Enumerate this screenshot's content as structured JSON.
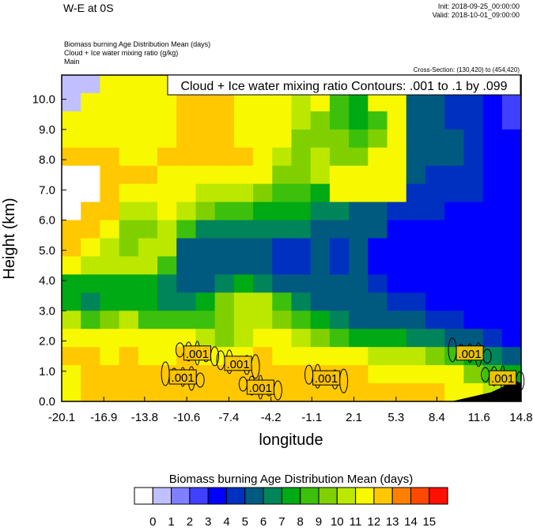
{
  "header": {
    "title": "W-E at 0S",
    "init": "Init: 2018-09-25_00:00:00",
    "valid": "Valid: 2018-10-01_09:00:00",
    "field1": "Biomass burning Age Distribution Mean   (days)",
    "field2": "Cloud + Ice water mixing ratio   (g/kg)",
    "field3": "Main",
    "cross_section": "Cross-Section: (130,420) to (454,420)"
  },
  "chart_data": {
    "type": "heatmap",
    "title": "",
    "contour_legend": "Cloud + Ice water mixing ratio Contours: .001 to .1 by .099",
    "xlabel": "longitude",
    "ylabel": "Height (km)",
    "xlim": [
      -20.1,
      14.8
    ],
    "ylim": [
      0,
      10.8
    ],
    "x_tick_labels": [
      "-20.1",
      "-16.9",
      "-13.8",
      "-10.6",
      "-7.4",
      "-4.2",
      "-1.1",
      "2.1",
      "5.3",
      "8.4",
      "11.6",
      "14.8"
    ],
    "y_tick_labels": [
      "0.0",
      "1.0",
      "2.0",
      "3.0",
      "4.0",
      "5.0",
      "6.0",
      "7.0",
      "8.0",
      "9.0",
      "10.0"
    ],
    "grid": false,
    "field_rows_top_to_bottom": [
      [
        0.5,
        0.5,
        11.5,
        11.5,
        11.5,
        11.5,
        12.5,
        12.5,
        12.5,
        11.5,
        11.5,
        11.5,
        11.5,
        11.5,
        11.5,
        11.5,
        11.5,
        11.5,
        5.5,
        5.5,
        4.5,
        4.5,
        3.5,
        2.5
      ],
      [
        0.5,
        11.5,
        11.5,
        11.5,
        11.5,
        11.5,
        12.5,
        12.5,
        12.5,
        11.5,
        11.5,
        11.5,
        10.5,
        11.5,
        8.5,
        7.5,
        11.5,
        11.5,
        5.5,
        5.5,
        4.5,
        4.5,
        3.5,
        2.5
      ],
      [
        11.5,
        11.5,
        11.5,
        11.5,
        11.5,
        11.5,
        12.5,
        12.5,
        12.5,
        11.5,
        11.5,
        11.5,
        10.5,
        9.5,
        8.5,
        7.5,
        8.5,
        11.5,
        5.5,
        5.5,
        4.5,
        4.5,
        3.5,
        2.5
      ],
      [
        11.5,
        11.5,
        11.5,
        11.5,
        11.5,
        11.5,
        12.5,
        12.5,
        12.5,
        11.5,
        11.5,
        11.5,
        9.5,
        9.5,
        9.5,
        8.5,
        9.5,
        11.5,
        5.5,
        5.5,
        5.5,
        4.5,
        3.5,
        3.5
      ],
      [
        12.5,
        12.5,
        12.5,
        11.5,
        11.5,
        12.5,
        12.5,
        12.5,
        12.5,
        12.5,
        11.5,
        10.5,
        9.5,
        10.5,
        9.5,
        9.5,
        11.5,
        11.5,
        5.5,
        5.5,
        5.5,
        4.5,
        3.5,
        3.5
      ],
      [
        -0.5,
        -0.5,
        12.5,
        12.5,
        12.5,
        11.5,
        11.5,
        11.5,
        11.5,
        11.5,
        11.5,
        9.5,
        9.5,
        10.5,
        11.5,
        11.5,
        11.5,
        11.5,
        5.5,
        4.5,
        4.5,
        4.5,
        3.5,
        3.5
      ],
      [
        -0.5,
        -0.5,
        12.5,
        11.5,
        11.5,
        11.5,
        11.5,
        10.5,
        10.5,
        10.5,
        9.5,
        8.5,
        8.5,
        7.5,
        11.5,
        11.5,
        11.5,
        11.5,
        4.5,
        4.5,
        4.5,
        4.5,
        3.5,
        3.5
      ],
      [
        -0.5,
        12.5,
        12.5,
        10.5,
        10.5,
        11.5,
        10.5,
        9.5,
        8.5,
        8.5,
        7.5,
        7.5,
        7.5,
        6.5,
        6.5,
        5.5,
        5.5,
        4.5,
        4.5,
        4.5,
        3.5,
        3.5,
        3.5,
        3.5
      ],
      [
        12.5,
        12.5,
        11.5,
        9.5,
        9.5,
        10.5,
        8.5,
        6.5,
        6.5,
        6.5,
        6.5,
        6.5,
        6.5,
        5.5,
        5.5,
        5.5,
        5.5,
        3.5,
        3.5,
        3.5,
        3.5,
        3.5,
        3.5,
        3.5
      ],
      [
        12.5,
        11.5,
        10.5,
        9.5,
        10.5,
        10.5,
        5.5,
        5.5,
        5.5,
        5.5,
        5.5,
        4.5,
        4.5,
        5.5,
        4.5,
        5.5,
        3.5,
        3.5,
        3.5,
        3.5,
        3.5,
        3.5,
        3.5,
        3.5
      ],
      [
        11.5,
        10.5,
        10.5,
        10.5,
        10.5,
        8.5,
        5.5,
        5.5,
        5.5,
        5.5,
        5.5,
        4.5,
        4.5,
        5.5,
        4.5,
        5.5,
        3.5,
        3.5,
        3.5,
        3.5,
        3.5,
        3.5,
        3.5,
        3.5
      ],
      [
        7.5,
        7.5,
        7.5,
        7.5,
        7.5,
        6.5,
        5.5,
        5.5,
        6.5,
        7.5,
        6.5,
        5.5,
        5.5,
        5.5,
        5.5,
        5.5,
        4.5,
        3.5,
        3.5,
        3.5,
        3.5,
        3.5,
        3.5,
        3.5
      ],
      [
        7.5,
        6.5,
        7.5,
        7.5,
        7.5,
        6.5,
        6.5,
        7.5,
        9.5,
        10.5,
        10.5,
        8.5,
        6.5,
        5.5,
        5.5,
        5.5,
        5.5,
        4.5,
        4.5,
        3.5,
        3.5,
        3.5,
        3.5,
        3.5
      ],
      [
        10.5,
        8.5,
        9.5,
        10.5,
        8.5,
        8.5,
        8.5,
        8.5,
        9.5,
        10.5,
        10.5,
        9.5,
        8.5,
        7.5,
        6.5,
        5.5,
        5.5,
        5.5,
        5.5,
        4.5,
        4.5,
        3.5,
        3.5,
        3.5
      ],
      [
        11.5,
        11.5,
        11.5,
        11.5,
        11.5,
        11.5,
        11.5,
        10.5,
        9.5,
        10.5,
        11.5,
        11.5,
        10.5,
        9.5,
        8.5,
        7.5,
        7.5,
        7.5,
        6.5,
        6.5,
        5.5,
        5.5,
        4.5,
        3.5
      ],
      [
        12.5,
        12.5,
        11.5,
        12.5,
        11.5,
        11.5,
        12.5,
        11.5,
        11.5,
        11.5,
        12.5,
        11.5,
        11.5,
        11.5,
        11.5,
        11.5,
        10.5,
        10.5,
        10.5,
        9.5,
        8.5,
        7.5,
        6.5,
        5.5
      ],
      [
        11.5,
        12.5,
        12.5,
        12.5,
        12.5,
        12.5,
        12.5,
        12.5,
        12.5,
        12.5,
        12.5,
        12.5,
        12.5,
        12.5,
        12.5,
        12.5,
        11.5,
        11.5,
        11.5,
        11.5,
        11.5,
        9.5,
        8.5,
        7.5
      ],
      [
        11.5,
        12.5,
        12.5,
        12.5,
        12.5,
        12.5,
        12.5,
        12.5,
        12.5,
        12.5,
        12.5,
        12.5,
        12.5,
        12.5,
        12.5,
        12.5,
        12.5,
        12.5,
        12.5,
        12.5,
        11.5,
        11.5,
        10.5,
        9.5
      ]
    ],
    "contour_labels": [
      {
        "text": ".001",
        "lon": -9.8,
        "height": 1.6
      },
      {
        "text": ".001",
        "lon": -6.7,
        "height": 1.26
      },
      {
        "text": ".001",
        "lon": -10.9,
        "height": 0.81
      },
      {
        "text": ".001",
        "lon": -5.0,
        "height": 0.47
      },
      {
        "text": ".001",
        "lon": 0.0,
        "height": 0.78
      },
      {
        "text": ".001",
        "lon": 10.9,
        "height": 1.6
      },
      {
        "text": ".001",
        "lon": 13.4,
        "height": 0.78
      }
    ],
    "terrain": [
      [
        9.5,
        0
      ],
      [
        11.0,
        0.15
      ],
      [
        12.5,
        0.3
      ],
      [
        13.5,
        0.5
      ],
      [
        14.3,
        0.7
      ],
      [
        14.8,
        0.6
      ]
    ],
    "colorbar": {
      "title": "Biomass burning Age Distribution Mean  (days)",
      "levels": [
        "0",
        "1",
        "2",
        "3",
        "4",
        "5",
        "6",
        "7",
        "8",
        "9",
        "10",
        "11",
        "12",
        "13",
        "14",
        "15"
      ],
      "colors": [
        "#ffffff",
        "#c0c0ff",
        "#8080ff",
        "#4040ff",
        "#0000ff",
        "#0030c0",
        "#005a80",
        "#00855a",
        "#00aa14",
        "#3cc00c",
        "#80d000",
        "#bce800",
        "#f8f800",
        "#ffc800",
        "#ff8000",
        "#ff4800",
        "#ff1000"
      ]
    }
  }
}
